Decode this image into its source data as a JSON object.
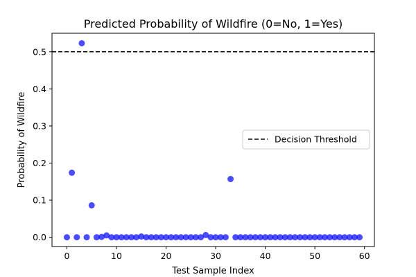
{
  "chart_data": {
    "type": "scatter",
    "title": "Predicted Probability of Wildfire (0=No, 1=Yes)",
    "xlabel": "Test Sample Index",
    "ylabel": "Probability of Wildfire",
    "xlim": [
      -3,
      62
    ],
    "ylim": [
      -0.025,
      0.55
    ],
    "xticks": [
      0,
      10,
      20,
      30,
      40,
      50,
      60
    ],
    "yticks": [
      0.0,
      0.1,
      0.2,
      0.3,
      0.4,
      0.5
    ],
    "xtick_labels": [
      "0",
      "10",
      "20",
      "30",
      "40",
      "50",
      "60"
    ],
    "ytick_labels": [
      "0.0",
      "0.1",
      "0.2",
      "0.3",
      "0.4",
      "0.5"
    ],
    "threshold": {
      "y": 0.5,
      "label": "Decision Threshold",
      "style": "dashed",
      "color": "#000000"
    },
    "legend": {
      "position": "center-right",
      "entries": [
        "Decision Threshold"
      ]
    },
    "point_color": "#0000ff",
    "point_alpha": 0.7,
    "grid": false,
    "points": {
      "x": [
        0,
        1,
        2,
        3,
        4,
        5,
        6,
        7,
        8,
        9,
        10,
        11,
        12,
        13,
        14,
        15,
        16,
        17,
        18,
        19,
        20,
        21,
        22,
        23,
        24,
        25,
        26,
        27,
        28,
        29,
        30,
        31,
        32,
        33,
        34,
        35,
        36,
        37,
        38,
        39,
        40,
        41,
        42,
        43,
        44,
        45,
        46,
        47,
        48,
        49,
        50,
        51,
        52,
        53,
        54,
        55,
        56,
        57,
        58,
        59
      ],
      "y": [
        0.0,
        0.174,
        0.0,
        0.523,
        0.0,
        0.086,
        0.0,
        0.001,
        0.005,
        0.0,
        0.0,
        0.0,
        0.0,
        0.0,
        0.0,
        0.002,
        0.0,
        0.0,
        0.0,
        0.0,
        0.0,
        0.0,
        0.0,
        0.0,
        0.0,
        0.0,
        0.0,
        0.0,
        0.006,
        0.0,
        0.0,
        0.0,
        0.0,
        0.157,
        0.0,
        0.0,
        0.0,
        0.0,
        0.0,
        0.0,
        0.0,
        0.0,
        0.0,
        0.0,
        0.0,
        0.0,
        0.0,
        0.0,
        0.0,
        0.0,
        0.0,
        0.0,
        0.0,
        0.0,
        0.0,
        0.0,
        0.0,
        0.0,
        0.0,
        0.0
      ]
    }
  }
}
